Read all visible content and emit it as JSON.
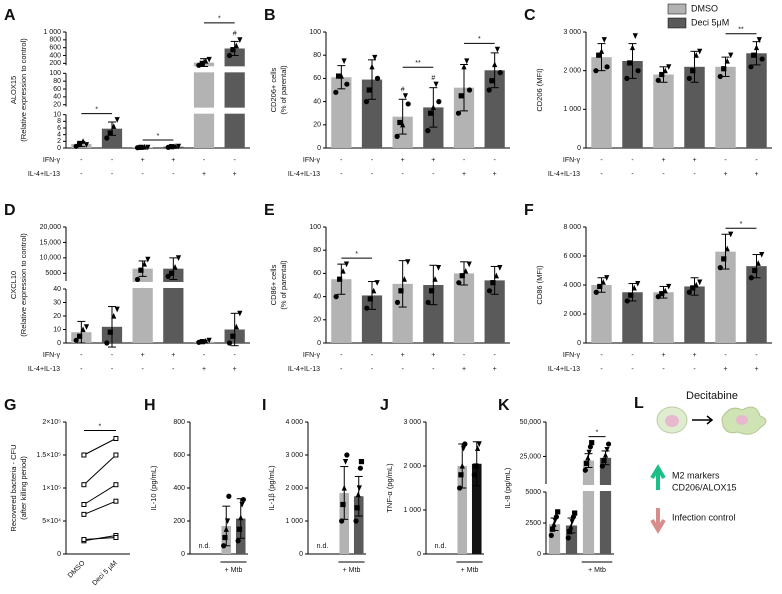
{
  "legend": [
    {
      "name": "DMSO",
      "color": "#b3b3b3"
    },
    {
      "name": "Deci 5μM",
      "color": "#5a5a5a"
    }
  ],
  "chart_data": [
    {
      "panel": "A",
      "type": "bar",
      "ylabel": [
        "ALOX15",
        "(Relative expression to control)"
      ],
      "segments": [
        {
          "ylim": [
            0,
            10
          ],
          "yticks": [
            0,
            2,
            4,
            6,
            8,
            10
          ]
        },
        {
          "ylim": [
            15,
            100
          ],
          "yticks": [
            20,
            40,
            60,
            80,
            100
          ]
        },
        {
          "ylim": [
            150,
            1000
          ],
          "yticks": [
            200,
            400,
            600,
            800,
            {
              "value": 1000,
              "label": "1 000"
            }
          ]
        }
      ],
      "values": [
        1.2,
        5.8,
        0.2,
        0.4,
        220,
        580
      ],
      "errors": [
        0.8,
        2,
        0.1,
        0.2,
        100,
        180
      ],
      "points": [
        [
          0.5,
          1.2,
          2.0,
          1.0
        ],
        [
          3,
          4.5,
          6.5,
          8.5
        ],
        [
          0.1,
          0.2,
          0.3,
          0.2
        ],
        [
          0.2,
          0.4,
          0.5,
          0.5
        ],
        [
          150,
          200,
          260,
          300
        ],
        [
          400,
          550,
          650,
          800
        ]
      ],
      "colors": [
        "#b3b3b3",
        "#5a5a5a",
        "#b3b3b3",
        "#5a5a5a",
        "#b3b3b3",
        "#5a5a5a"
      ],
      "conditions": [
        {
          "label": "IFN-γ",
          "signs": [
            "-",
            "-",
            "+",
            "+",
            "-",
            "-"
          ]
        },
        {
          "label": "IL-4+IL-13",
          "signs": [
            "-",
            "-",
            "-",
            "-",
            "+",
            "+"
          ]
        }
      ],
      "annotations": [
        {
          "text": "#",
          "bars": [
            5
          ]
        },
        {
          "text": "*",
          "bars": [
            0,
            1
          ]
        },
        {
          "text": "*",
          "bars": [
            2,
            3
          ]
        },
        {
          "text": "*",
          "bars": [
            4,
            5
          ]
        }
      ]
    },
    {
      "panel": "B",
      "type": "bar",
      "ylabel": [
        "CD206+ cells",
        "(% of parental)"
      ],
      "ylim": [
        0,
        100
      ],
      "yticks": [
        0,
        20,
        40,
        60,
        80,
        100
      ],
      "values": [
        61,
        59,
        27,
        35,
        52,
        67
      ],
      "errors": [
        10,
        17,
        15,
        17,
        20,
        15
      ],
      "points": [
        [
          48,
          62,
          62,
          75,
          55
        ],
        [
          40,
          50,
          70,
          78,
          60
        ],
        [
          10,
          22,
          20,
          45,
          38
        ],
        [
          15,
          30,
          35,
          55,
          40
        ],
        [
          30,
          45,
          70,
          75,
          50
        ],
        [
          50,
          58,
          72,
          85,
          65
        ]
      ],
      "colors": [
        "#b3b3b3",
        "#5a5a5a",
        "#b3b3b3",
        "#5a5a5a",
        "#b3b3b3",
        "#5a5a5a"
      ],
      "conditions": [
        {
          "label": "IFN-γ",
          "signs": [
            "-",
            "-",
            "+",
            "+",
            "-",
            "-"
          ]
        },
        {
          "label": "IL-4+IL-13",
          "signs": [
            "-",
            "-",
            "-",
            "-",
            "+",
            "+"
          ]
        }
      ],
      "annotations": [
        {
          "text": "#",
          "bars": [
            2
          ]
        },
        {
          "text": "#",
          "bars": [
            3
          ]
        },
        {
          "text": "**",
          "bars": [
            2,
            3
          ]
        },
        {
          "text": "*",
          "bars": [
            4,
            5
          ]
        }
      ]
    },
    {
      "panel": "C",
      "type": "bar",
      "ylabel": [
        "CD206 (MFI)"
      ],
      "ylim": [
        0,
        3000
      ],
      "yticks": [
        0,
        {
          "value": 1000,
          "label": "1 000"
        },
        {
          "value": 2000,
          "label": "2 000"
        },
        {
          "value": 3000,
          "label": "3 000"
        }
      ],
      "values": [
        2350,
        2250,
        1900,
        2100,
        2100,
        2450
      ],
      "errors": [
        350,
        450,
        200,
        400,
        250,
        300
      ],
      "points": [
        [
          2000,
          2400,
          2500,
          2800,
          2100
        ],
        [
          1800,
          2200,
          2600,
          2900,
          2000
        ],
        [
          1750,
          1900,
          2000,
          2100
        ],
        [
          1800,
          2000,
          2400,
          2500
        ],
        [
          1850,
          2050,
          2250,
          2400
        ],
        [
          2100,
          2400,
          2600,
          2800,
          2300
        ]
      ],
      "colors": [
        "#b3b3b3",
        "#5a5a5a",
        "#b3b3b3",
        "#5a5a5a",
        "#b3b3b3",
        "#5a5a5a"
      ],
      "conditions": [
        {
          "label": "IFN-γ",
          "signs": [
            "-",
            "-",
            "+",
            "+",
            "-",
            "-"
          ]
        },
        {
          "label": "IL-4+IL-13",
          "signs": [
            "-",
            "-",
            "-",
            "-",
            "+",
            "+"
          ]
        }
      ],
      "annotations": [
        {
          "text": "**",
          "bars": [
            4,
            5
          ]
        }
      ]
    },
    {
      "panel": "D",
      "type": "bar",
      "ylabel": [
        "CXCL10",
        "(Relative expression to control)"
      ],
      "segments": [
        {
          "ylim": [
            0,
            40
          ],
          "yticks": [
            0,
            10,
            20,
            30,
            40
          ]
        },
        {
          "ylim": [
            2500,
            20000
          ],
          "yticks": [
            5000,
            {
              "value": 10000,
              "label": "10,000"
            },
            {
              "value": 15000,
              "label": "15,000"
            },
            {
              "value": 20000,
              "label": "20,000"
            }
          ]
        }
      ],
      "values": [
        8,
        12,
        6500,
        6500,
        1,
        10
      ],
      "errors": [
        8,
        15,
        2500,
        3500,
        1,
        12
      ],
      "points": [
        [
          2,
          5,
          10,
          12
        ],
        [
          0,
          8,
          20,
          25
        ],
        [
          3000,
          6000,
          8000,
          9500
        ],
        [
          4000,
          5000,
          7000,
          10000
        ],
        [
          0.5,
          1,
          1.5,
          2
        ],
        [
          0,
          5,
          12,
          22
        ]
      ],
      "colors": [
        "#b3b3b3",
        "#5a5a5a",
        "#b3b3b3",
        "#5a5a5a",
        "#b3b3b3",
        "#5a5a5a"
      ],
      "conditions": [
        {
          "label": "IFN-γ",
          "signs": [
            "-",
            "-",
            "+",
            "+",
            "-",
            "-"
          ]
        },
        {
          "label": "IL-4+IL-13",
          "signs": [
            "-",
            "-",
            "-",
            "-",
            "+",
            "+"
          ]
        }
      ],
      "annotations": []
    },
    {
      "panel": "E",
      "type": "bar",
      "ylabel": [
        "CD86+ cells",
        "(% of parental)"
      ],
      "ylim": [
        0,
        100
      ],
      "yticks": [
        0,
        20,
        40,
        60,
        80,
        100
      ],
      "values": [
        55,
        41,
        51,
        50,
        60,
        54
      ],
      "errors": [
        13,
        12,
        20,
        17,
        10,
        12
      ],
      "points": [
        [
          40,
          55,
          62,
          68
        ],
        [
          30,
          38,
          45,
          52
        ],
        [
          35,
          45,
          55,
          70
        ],
        [
          35,
          45,
          55,
          65
        ],
        [
          52,
          58,
          62,
          68
        ],
        [
          45,
          52,
          58,
          65
        ]
      ],
      "colors": [
        "#b3b3b3",
        "#5a5a5a",
        "#b3b3b3",
        "#5a5a5a",
        "#b3b3b3",
        "#5a5a5a"
      ],
      "conditions": [
        {
          "label": "IFN-γ",
          "signs": [
            "-",
            "-",
            "+",
            "+",
            "-",
            "-"
          ]
        },
        {
          "label": "IL-4+IL-13",
          "signs": [
            "-",
            "-",
            "-",
            "-",
            "+",
            "+"
          ]
        }
      ],
      "annotations": [
        {
          "text": "*",
          "bars": [
            0,
            1
          ]
        }
      ]
    },
    {
      "panel": "F",
      "type": "bar",
      "ylabel": [
        "CD86 (MFI)"
      ],
      "ylim": [
        0,
        8000
      ],
      "yticks": [
        0,
        {
          "value": 2000,
          "label": "2 000"
        },
        {
          "value": 4000,
          "label": "4 000"
        },
        {
          "value": 6000,
          "label": "6 000"
        },
        {
          "value": 8000,
          "label": "8 000"
        }
      ],
      "values": [
        4000,
        3500,
        3500,
        3900,
        6300,
        5300
      ],
      "errors": [
        500,
        600,
        400,
        600,
        1200,
        800
      ],
      "points": [
        [
          3500,
          3900,
          4200,
          4500
        ],
        [
          2900,
          3300,
          3800,
          4100
        ],
        [
          3200,
          3400,
          3600,
          3900
        ],
        [
          3500,
          3800,
          4000,
          4200
        ],
        [
          5200,
          5800,
          6500,
          7500
        ],
        [
          4500,
          5000,
          5500,
          6100
        ]
      ],
      "colors": [
        "#b3b3b3",
        "#5a5a5a",
        "#b3b3b3",
        "#5a5a5a",
        "#b3b3b3",
        "#5a5a5a"
      ],
      "conditions": [
        {
          "label": "IFN-γ",
          "signs": [
            "-",
            "-",
            "+",
            "+",
            "-",
            "-"
          ]
        },
        {
          "label": "IL-4+IL-13",
          "signs": [
            "-",
            "-",
            "-",
            "-",
            "+",
            "+"
          ]
        }
      ],
      "annotations": [
        {
          "text": "*",
          "bars": [
            4,
            5
          ]
        }
      ]
    },
    {
      "panel": "G",
      "type": "line",
      "ylabel": [
        "Recovered bacteria - CFU",
        "(after killing period)"
      ],
      "categories": [
        "DMSO",
        "Deci 5 µM"
      ],
      "ylim": [
        0,
        200000
      ],
      "yticks": [
        0,
        {
          "value": 50000,
          "label": "5×10⁴"
        },
        {
          "value": 100000,
          "label": "1×10⁵"
        },
        {
          "value": 150000,
          "label": "1.5×10⁵"
        },
        {
          "value": 200000,
          "label": "2×10⁵"
        }
      ],
      "pairs": [
        [
          20000,
          28000
        ],
        [
          22000,
          25000
        ],
        [
          60000,
          80000
        ],
        [
          75000,
          105000
        ],
        [
          105000,
          150000
        ],
        [
          150000,
          175000
        ]
      ],
      "annotations": [
        {
          "text": "*",
          "bars": [
            0,
            1
          ]
        }
      ]
    },
    {
      "panel": "H",
      "type": "bar",
      "ylabel": [
        "IL-10 (pg/mL)"
      ],
      "ylim": [
        0,
        800
      ],
      "yticks": [
        0,
        200,
        400,
        600,
        800
      ],
      "values": [
        null,
        null,
        170,
        215
      ],
      "errors": [
        null,
        null,
        120,
        120
      ],
      "points": [
        [],
        [],
        [
          50,
          100,
          150,
          200,
          350
        ],
        [
          80,
          150,
          220,
          300,
          330
        ]
      ],
      "colors": [
        "#b3b3b3",
        "#5a5a5a",
        "#b3b3b3",
        "#5a5a5a"
      ],
      "missing_label": "n.d.",
      "group_label": {
        "text": "+ Mtb",
        "bars": [
          2,
          3
        ]
      },
      "annotations": []
    },
    {
      "panel": "I",
      "type": "bar",
      "ylabel": [
        "IL-1β (pg/mL)"
      ],
      "ylim": [
        0,
        4000
      ],
      "yticks": [
        0,
        {
          "value": 1000,
          "label": "1 000"
        },
        {
          "value": 2000,
          "label": "2 000"
        },
        {
          "value": 3000,
          "label": "3 000"
        },
        {
          "value": 4000,
          "label": "4 000"
        }
      ],
      "values": [
        null,
        null,
        1850,
        1750
      ],
      "errors": [
        null,
        null,
        800,
        600
      ],
      "points": [
        [],
        [],
        [
          1000,
          1500,
          2000,
          2800,
          3000
        ],
        [
          1000,
          1400,
          1800,
          2000,
          2600,
          2800
        ]
      ],
      "colors": [
        "#b3b3b3",
        "#5a5a5a",
        "#b3b3b3",
        "#5a5a5a"
      ],
      "missing_label": "n.d.",
      "group_label": {
        "text": "+ Mtb",
        "bars": [
          2,
          3
        ]
      },
      "annotations": []
    },
    {
      "panel": "J",
      "type": "bar",
      "ylabel": [
        "TNF-α (pg/mL)"
      ],
      "ylim": [
        0,
        3000
      ],
      "yticks": [
        0,
        {
          "value": 1000,
          "label": "1 000"
        },
        {
          "value": 2000,
          "label": "2 000"
        },
        {
          "value": 3000,
          "label": "3 000"
        }
      ],
      "values": [
        null,
        null,
        2000,
        2050
      ],
      "errors": [
        null,
        null,
        500,
        500
      ],
      "points": [
        [],
        [],
        [
          1500,
          1800,
          2000,
          2400,
          2500
        ],
        [
          1800,
          2000,
          2400,
          2500
        ]
      ],
      "colors": [
        "#b3b3b3",
        "#5a5a5a",
        "#b3b3b3",
        "#111111"
      ],
      "missing_label": "n.d.",
      "group_label": {
        "text": "+ Mtb",
        "bars": [
          2,
          3
        ]
      },
      "annotations": []
    },
    {
      "panel": "K",
      "type": "bar",
      "ylabel": [
        "IL-8 (pg/mL)"
      ],
      "segments": [
        {
          "ylim": [
            0,
            5000
          ],
          "yticks": [
            0,
            2500,
            5000
          ]
        },
        {
          "ylim": [
            5000,
            50000
          ],
          "yticks": [
            {
              "value": 25000,
              "label": "25,000"
            },
            {
              "value": 50000,
              "label": "50,000"
            }
          ]
        }
      ],
      "values": [
        2400,
        2300,
        22000,
        24000
      ],
      "errors": [
        500,
        600,
        5000,
        5000
      ],
      "points": [
        [
          1500,
          2000,
          2400,
          2700,
          3000,
          3400
        ],
        [
          1300,
          1800,
          2200,
          2600,
          3000,
          3300
        ],
        [
          15000,
          20000,
          24000,
          28000,
          32000,
          35000
        ],
        [
          18000,
          22000,
          26000,
          30000,
          34000
        ]
      ],
      "colors": [
        "#b3b3b3",
        "#5a5a5a",
        "#b3b3b3",
        "#5a5a5a"
      ],
      "group_label": {
        "text": "+ Mtb",
        "bars": [
          2,
          3
        ]
      },
      "annotations": [
        {
          "text": "*",
          "bars": [
            2,
            3
          ]
        }
      ]
    }
  ],
  "schematic": {
    "panel": "L",
    "title": "Decitabine",
    "up_text": [
      "M2 markers",
      "CD206/ALOX15"
    ],
    "down_text": [
      "Infection control"
    ]
  }
}
